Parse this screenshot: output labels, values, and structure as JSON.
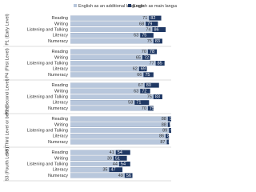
{
  "chart_data": {
    "type": "bar",
    "series": [
      {
        "name": "English as an additional language",
        "color": "#b8c7dc"
      },
      {
        "name": "English as main language",
        "color": "#1f3864"
      }
    ],
    "groups": [
      {
        "label": "P1 (Early Level)",
        "categories": [
          "Reading",
          "Writing",
          "Listening and Talking",
          "Literacy",
          "Numeracy"
        ],
        "values": [
          [
            71,
            68,
            74,
            63,
            75
          ],
          [
            82,
            79,
            86,
            75,
            83
          ]
        ]
      },
      {
        "label": "P4 (First Level)",
        "categories": [
          "Reading",
          "Writing",
          "Listening and Talking",
          "Literacy",
          "Numeracy"
        ],
        "values": [
          [
            70,
            65,
            77,
            62,
            66
          ],
          [
            78,
            72,
            85,
            69,
            75
          ]
        ]
      },
      {
        "label": "P7 (Second Level)",
        "categories": [
          "Reading",
          "Writing",
          "Listening and Talking",
          "Literacy",
          "Numeracy"
        ],
        "values": [
          [
            67,
            63,
            75,
            58,
            70
          ],
          [
            80,
            72,
            83,
            71,
            75
          ]
        ]
      },
      {
        "label": "S3 (Third Level or better)",
        "categories": [
          "Reading",
          "Writing",
          "Listening and Talking",
          "Literacy",
          "Numeracy"
        ],
        "values": [
          [
            88,
            88,
            89,
            86,
            87
          ],
          [
            91,
            90,
            91,
            89,
            89
          ]
        ]
      },
      {
        "label": "S3 (Fourth Level)",
        "categories": [
          "Reading",
          "Writing",
          "Listening and Talking",
          "Literacy",
          "Numeracy"
        ],
        "values": [
          [
            41,
            39,
            44,
            35,
            49
          ],
          [
            54,
            51,
            54,
            47,
            56
          ]
        ]
      }
    ]
  }
}
